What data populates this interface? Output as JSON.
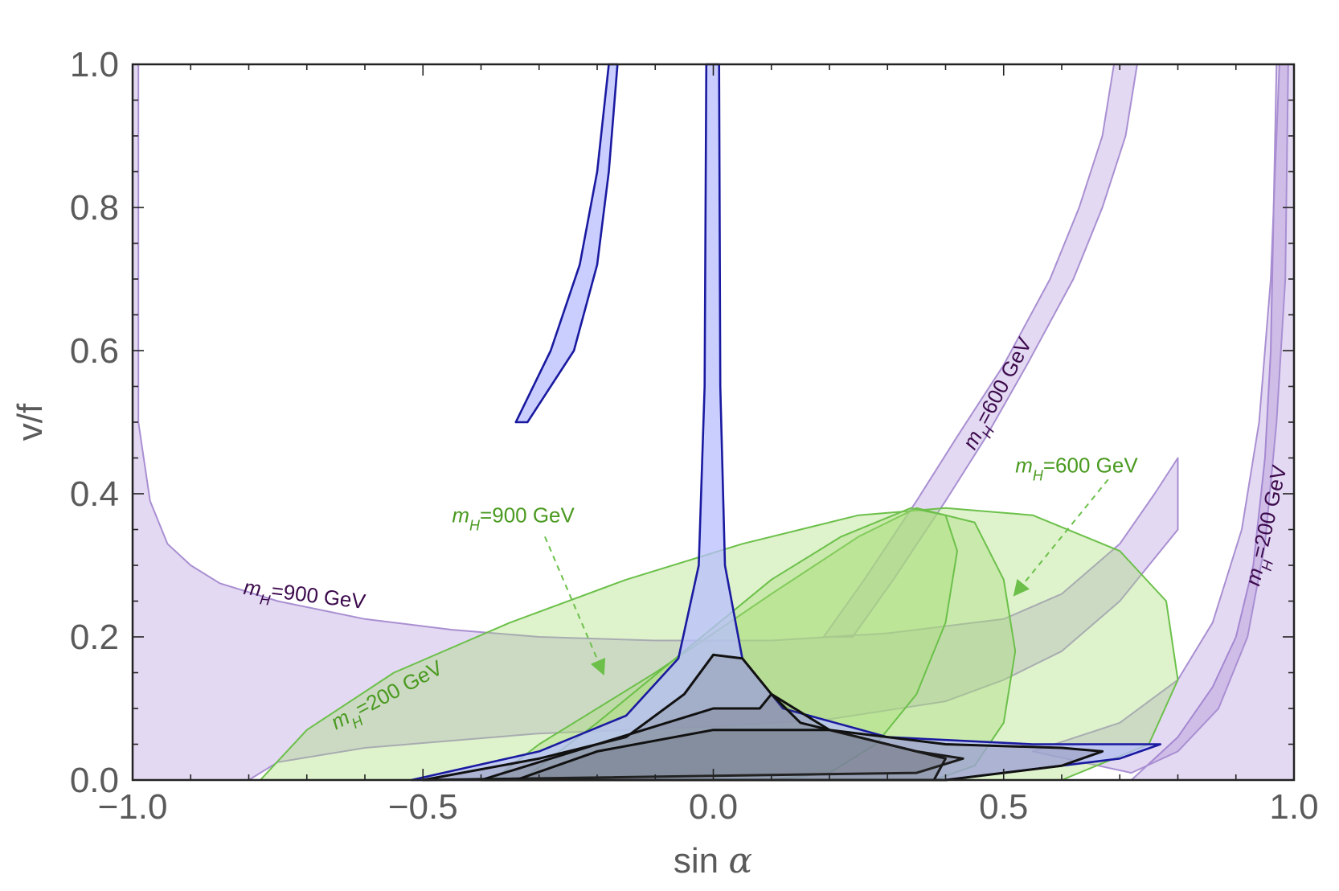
{
  "chart_data": {
    "type": "area",
    "title": "",
    "xlabel": "sin",
    "xlabel_symbol": "α",
    "ylabel": "v/f",
    "xlim": [
      -1.0,
      1.0
    ],
    "ylim": [
      0.0,
      1.0
    ],
    "x_ticks": [
      -1.0,
      -0.5,
      0.0,
      0.5,
      1.0
    ],
    "x_tick_labels": [
      "−1.0",
      "−0.5",
      "0.0",
      "0.5",
      "1.0"
    ],
    "y_ticks": [
      0.0,
      0.2,
      0.4,
      0.6,
      0.8,
      1.0
    ],
    "y_tick_labels": [
      "0.0",
      "0.2",
      "0.4",
      "0.6",
      "0.8",
      "1.0"
    ],
    "grid": false,
    "colors": {
      "purple_fill": "#9a78d0",
      "purple_line": "#a98fd2",
      "blue_fill": "#b8beff",
      "blue_line": "#1a1aa0",
      "green_fill": "#a8dc78",
      "green_line": "#6cc04a",
      "black_line": "#111111",
      "green_text": "#4a9a20",
      "purple_text": "#3c0a4c"
    },
    "regions": [
      {
        "name": "purple-mh900",
        "group": "purple",
        "boundary": [
          [
            -1.0,
            1.0
          ],
          [
            -0.99,
            1.0
          ],
          [
            -0.99,
            0.5
          ],
          [
            -0.97,
            0.39
          ],
          [
            -0.94,
            0.33
          ],
          [
            -0.9,
            0.3
          ],
          [
            -0.85,
            0.275
          ],
          [
            -0.75,
            0.25
          ],
          [
            -0.6,
            0.225
          ],
          [
            -0.45,
            0.21
          ],
          [
            -0.3,
            0.2
          ],
          [
            -0.1,
            0.195
          ],
          [
            0.1,
            0.195
          ],
          [
            0.3,
            0.205
          ],
          [
            0.5,
            0.225
          ],
          [
            0.6,
            0.26
          ],
          [
            0.7,
            0.33
          ],
          [
            0.76,
            0.4
          ],
          [
            0.8,
            0.45
          ],
          [
            0.8,
            0.35
          ],
          [
            0.7,
            0.25
          ],
          [
            0.6,
            0.18
          ],
          [
            0.5,
            0.14
          ],
          [
            0.4,
            0.11
          ],
          [
            0.2,
            0.085
          ],
          [
            0.0,
            0.075
          ],
          [
            -0.3,
            0.065
          ],
          [
            -0.6,
            0.045
          ],
          [
            -0.75,
            0.025
          ],
          [
            -0.8,
            0.0
          ],
          [
            -1.0,
            0.0
          ]
        ]
      },
      {
        "name": "purple-mh600",
        "group": "purple",
        "boundary": [
          [
            0.19,
            0.2
          ],
          [
            0.26,
            0.28
          ],
          [
            0.35,
            0.39
          ],
          [
            0.42,
            0.48
          ],
          [
            0.5,
            0.58
          ],
          [
            0.58,
            0.7
          ],
          [
            0.63,
            0.8
          ],
          [
            0.67,
            0.9
          ],
          [
            0.69,
            1.0
          ],
          [
            0.73,
            1.0
          ],
          [
            0.71,
            0.9
          ],
          [
            0.67,
            0.8
          ],
          [
            0.62,
            0.7
          ],
          [
            0.54,
            0.58
          ],
          [
            0.47,
            0.48
          ],
          [
            0.4,
            0.39
          ],
          [
            0.31,
            0.28
          ],
          [
            0.24,
            0.2
          ],
          [
            0.19,
            0.2
          ]
        ]
      },
      {
        "name": "purple-mh200",
        "group": "purple",
        "boundary": [
          [
            0.97,
            1.0
          ],
          [
            1.0,
            1.0
          ],
          [
            1.0,
            0.0
          ],
          [
            0.72,
            0.0
          ],
          [
            0.8,
            0.06
          ],
          [
            0.86,
            0.13
          ],
          [
            0.9,
            0.2
          ],
          [
            0.93,
            0.3
          ],
          [
            0.95,
            0.45
          ],
          [
            0.96,
            0.6
          ],
          [
            0.965,
            0.8
          ],
          [
            0.97,
            1.0
          ]
        ]
      },
      {
        "name": "purple-mh200-inner",
        "group": "purple",
        "boundary": [
          [
            0.55,
            0.04
          ],
          [
            0.7,
            0.08
          ],
          [
            0.8,
            0.14
          ],
          [
            0.86,
            0.22
          ],
          [
            0.91,
            0.35
          ],
          [
            0.94,
            0.5
          ],
          [
            0.96,
            0.7
          ],
          [
            0.975,
            1.0
          ],
          [
            0.99,
            1.0
          ],
          [
            0.985,
            0.7
          ],
          [
            0.97,
            0.5
          ],
          [
            0.95,
            0.33
          ],
          [
            0.92,
            0.2
          ],
          [
            0.87,
            0.1
          ],
          [
            0.8,
            0.04
          ],
          [
            0.72,
            0.01
          ],
          [
            0.55,
            0.04
          ]
        ]
      },
      {
        "name": "green-mh200",
        "group": "green",
        "boundary": [
          [
            -0.78,
            0.0
          ],
          [
            -0.7,
            0.07
          ],
          [
            -0.55,
            0.15
          ],
          [
            -0.35,
            0.22
          ],
          [
            -0.15,
            0.28
          ],
          [
            0.05,
            0.33
          ],
          [
            0.25,
            0.37
          ],
          [
            0.4,
            0.38
          ],
          [
            0.55,
            0.37
          ],
          [
            0.7,
            0.32
          ],
          [
            0.78,
            0.25
          ],
          [
            0.8,
            0.14
          ],
          [
            0.75,
            0.05
          ],
          [
            0.6,
            0.0
          ],
          [
            -0.78,
            0.0
          ]
        ]
      },
      {
        "name": "green-mh600",
        "group": "green",
        "boundary": [
          [
            -0.38,
            0.0
          ],
          [
            -0.3,
            0.05
          ],
          [
            -0.1,
            0.15
          ],
          [
            0.1,
            0.26
          ],
          [
            0.25,
            0.34
          ],
          [
            0.35,
            0.38
          ],
          [
            0.45,
            0.36
          ],
          [
            0.5,
            0.28
          ],
          [
            0.52,
            0.18
          ],
          [
            0.5,
            0.08
          ],
          [
            0.45,
            0.02
          ],
          [
            0.38,
            0.0
          ],
          [
            -0.38,
            0.0
          ]
        ]
      },
      {
        "name": "green-mh900",
        "group": "green",
        "boundary": [
          [
            -0.33,
            0.0
          ],
          [
            -0.2,
            0.08
          ],
          [
            -0.05,
            0.18
          ],
          [
            0.1,
            0.28
          ],
          [
            0.22,
            0.34
          ],
          [
            0.34,
            0.38
          ],
          [
            0.4,
            0.37
          ],
          [
            0.42,
            0.32
          ],
          [
            0.4,
            0.22
          ],
          [
            0.35,
            0.12
          ],
          [
            0.28,
            0.05
          ],
          [
            0.2,
            0.01
          ],
          [
            0.1,
            0.0
          ],
          [
            -0.33,
            0.0
          ]
        ]
      },
      {
        "name": "blue-spike",
        "group": "blue",
        "boundary": [
          [
            -0.52,
            0.0
          ],
          [
            -0.3,
            0.04
          ],
          [
            -0.15,
            0.09
          ],
          [
            -0.06,
            0.17
          ],
          [
            -0.025,
            0.3
          ],
          [
            -0.015,
            0.55
          ],
          [
            -0.012,
            1.0
          ],
          [
            0.01,
            1.0
          ],
          [
            0.012,
            0.55
          ],
          [
            0.02,
            0.3
          ],
          [
            0.05,
            0.17
          ],
          [
            0.12,
            0.1
          ],
          [
            0.3,
            0.06
          ],
          [
            0.55,
            0.05
          ],
          [
            0.77,
            0.05
          ],
          [
            0.7,
            0.03
          ],
          [
            0.4,
            0.0
          ],
          [
            -0.52,
            0.0
          ]
        ]
      },
      {
        "name": "blue-upper-strip",
        "group": "blue",
        "boundary": [
          [
            -0.34,
            0.5
          ],
          [
            -0.28,
            0.6
          ],
          [
            -0.23,
            0.72
          ],
          [
            -0.2,
            0.85
          ],
          [
            -0.18,
            1.0
          ],
          [
            -0.165,
            1.0
          ],
          [
            -0.18,
            0.85
          ],
          [
            -0.2,
            0.72
          ],
          [
            -0.24,
            0.6
          ],
          [
            -0.32,
            0.5
          ],
          [
            -0.34,
            0.5
          ]
        ]
      },
      {
        "name": "black-contour-1",
        "group": "black",
        "boundary": [
          [
            -0.5,
            0.0
          ],
          [
            -0.3,
            0.03
          ],
          [
            -0.15,
            0.06
          ],
          [
            -0.05,
            0.12
          ],
          [
            0.0,
            0.175
          ],
          [
            0.05,
            0.17
          ],
          [
            0.1,
            0.12
          ],
          [
            0.2,
            0.07
          ],
          [
            0.35,
            0.04
          ],
          [
            0.43,
            0.03
          ],
          [
            0.35,
            0.01
          ],
          [
            -0.5,
            0.0
          ]
        ]
      },
      {
        "name": "black-contour-2",
        "group": "black",
        "boundary": [
          [
            -0.4,
            0.0
          ],
          [
            -0.2,
            0.05
          ],
          [
            0.0,
            0.1
          ],
          [
            0.08,
            0.1
          ],
          [
            0.1,
            0.12
          ],
          [
            0.15,
            0.08
          ],
          [
            0.3,
            0.05
          ],
          [
            0.4,
            0.03
          ],
          [
            0.38,
            0.0
          ],
          [
            -0.4,
            0.0
          ]
        ]
      },
      {
        "name": "black-contour-3",
        "group": "black",
        "boundary": [
          [
            -0.34,
            0.0
          ],
          [
            -0.2,
            0.04
          ],
          [
            0.0,
            0.07
          ],
          [
            0.2,
            0.07
          ],
          [
            0.4,
            0.05
          ],
          [
            0.6,
            0.045
          ],
          [
            0.67,
            0.04
          ],
          [
            0.6,
            0.02
          ],
          [
            0.4,
            0.0
          ],
          [
            -0.34,
            0.0
          ]
        ]
      }
    ],
    "annotations": [
      {
        "name": "label-purple-mh900",
        "sub": "H",
        "text": "=900 GeV",
        "color": "purple_text",
        "x": -0.81,
        "y": 0.26,
        "angle": 7
      },
      {
        "name": "label-purple-mh600",
        "sub": "H",
        "text": "=600 GeV",
        "color": "purple_text",
        "x": 0.45,
        "y": 0.46,
        "angle": -62
      },
      {
        "name": "label-purple-mh200",
        "sub": "H",
        "text": "=200 GeV",
        "color": "purple_text",
        "x": 0.94,
        "y": 0.27,
        "angle": -77
      },
      {
        "name": "label-green-mh200",
        "sub": "H",
        "text": "=200 GeV",
        "color": "green_text",
        "x": -0.65,
        "y": 0.07,
        "angle": -28
      },
      {
        "name": "label-green-mh900",
        "sub": "H",
        "text": "=900 GeV",
        "color": "green_text",
        "x": -0.45,
        "y": 0.36,
        "angle": 0
      },
      {
        "name": "label-green-mh600",
        "sub": "H",
        "text": "=600 GeV",
        "color": "green_text",
        "x": 0.52,
        "y": 0.43,
        "angle": 0
      }
    ],
    "arrows": [
      {
        "name": "arrow-green-mh900",
        "from": [
          -0.29,
          0.34
        ],
        "to": [
          -0.19,
          0.15
        ]
      },
      {
        "name": "arrow-green-mh600",
        "from": [
          0.68,
          0.42
        ],
        "to": [
          0.52,
          0.26
        ]
      }
    ]
  }
}
